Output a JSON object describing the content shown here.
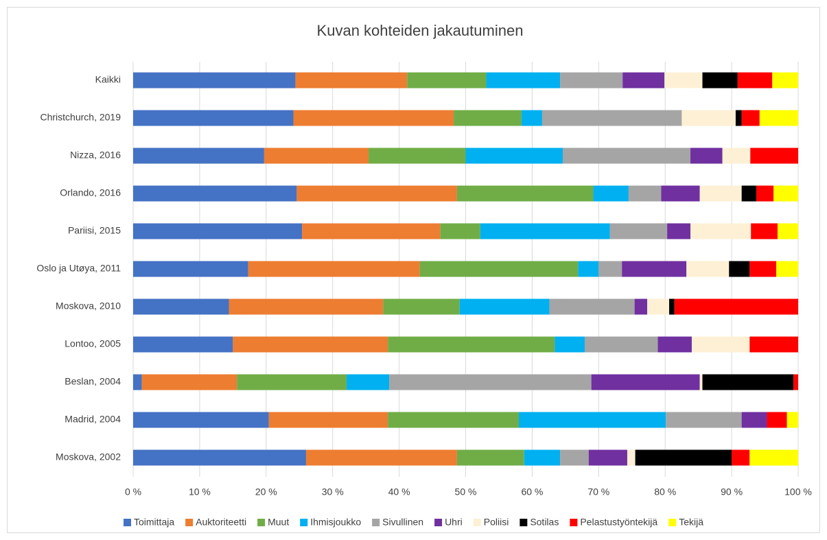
{
  "chart_data": {
    "type": "stacked_bar_horizontal",
    "title": "Kuvan kohteiden jakautuminen",
    "categories": [
      "Kaikki",
      "Christchurch, 2019",
      "Nizza, 2016",
      "Orlando, 2016",
      "Pariisi, 2015",
      "Oslo ja Utøya, 2011",
      "Moskova, 2010",
      "Lontoo, 2005",
      "Beslan, 2004",
      "Madrid, 2004",
      "Moskova, 2002"
    ],
    "series": [
      {
        "name": "Toimittaja",
        "color": "#4472c4",
        "values": [
          24.4,
          24.1,
          19.7,
          24.6,
          25.4,
          17.3,
          14.4,
          15.0,
          1.3,
          20.4,
          26.0
        ]
      },
      {
        "name": "Auktoriteetti",
        "color": "#ed7d31",
        "values": [
          16.8,
          24.1,
          15.7,
          24.1,
          20.8,
          25.8,
          23.2,
          23.3,
          14.3,
          17.9,
          22.7
        ]
      },
      {
        "name": "Muut",
        "color": "#70ad47",
        "values": [
          11.9,
          10.2,
          14.6,
          20.5,
          6.0,
          23.8,
          11.5,
          25.1,
          16.5,
          19.7,
          10.1
        ]
      },
      {
        "name": "Ihmisjoukko",
        "color": "#00b0f0",
        "values": [
          11.1,
          3.1,
          14.6,
          5.3,
          19.5,
          3.1,
          13.5,
          4.5,
          6.4,
          22.1,
          5.4
        ]
      },
      {
        "name": "Sivullinen",
        "color": "#a5a5a5",
        "values": [
          9.4,
          21.0,
          19.2,
          4.9,
          8.6,
          3.5,
          12.8,
          11.0,
          30.4,
          11.4,
          4.3
        ]
      },
      {
        "name": "Uhri",
        "color": "#7030a0",
        "values": [
          6.3,
          0,
          4.8,
          5.8,
          3.5,
          9.7,
          1.9,
          5.1,
          16.3,
          3.8,
          5.8
        ]
      },
      {
        "name": "Poliisi",
        "color": "#fdf0d5",
        "values": [
          5.7,
          8.1,
          4.2,
          6.3,
          9.1,
          6.4,
          3.3,
          8.7,
          0.4,
          0,
          1.2
        ]
      },
      {
        "name": "Sotilas",
        "color": "#000000",
        "values": [
          5.3,
          0.9,
          0,
          2.2,
          0,
          3.1,
          0.8,
          0,
          13.7,
          0,
          14.5
        ]
      },
      {
        "name": "Pelastustyöntekijä",
        "color": "#ff0000",
        "values": [
          5.2,
          2.7,
          7.2,
          2.6,
          4.0,
          4.0,
          18.6,
          7.3,
          0.7,
          3.0,
          2.7
        ]
      },
      {
        "name": "Tekijä",
        "color": "#ffff00",
        "values": [
          3.9,
          5.8,
          0,
          3.7,
          3.1,
          3.3,
          0,
          0,
          0,
          1.7,
          7.3
        ]
      }
    ],
    "xlim": [
      0,
      100
    ],
    "xticks": [
      {
        "value": 0,
        "label": "0 %"
      },
      {
        "value": 10,
        "label": "10 %"
      },
      {
        "value": 20,
        "label": "20 %"
      },
      {
        "value": 30,
        "label": "30 %"
      },
      {
        "value": 40,
        "label": "40 %"
      },
      {
        "value": 50,
        "label": "50 %"
      },
      {
        "value": 60,
        "label": "60 %"
      },
      {
        "value": 70,
        "label": "70 %"
      },
      {
        "value": 80,
        "label": "80 %"
      },
      {
        "value": 90,
        "label": "90 %"
      },
      {
        "value": 100,
        "label": "100 %"
      }
    ],
    "grid": true,
    "legend": "bottom"
  }
}
